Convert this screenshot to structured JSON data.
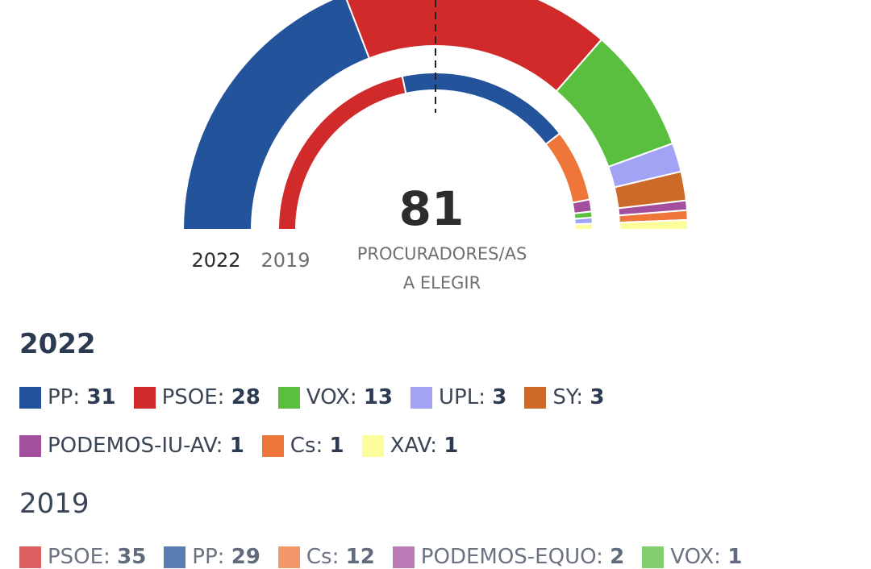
{
  "chart_data": {
    "type": "pie",
    "total": {
      "value": "81",
      "label_line1": "PROCURADORES/AS",
      "label_line2": "A ELEGIR"
    },
    "ring_labels": {
      "outer": "2022",
      "inner": "2019"
    },
    "series": [
      {
        "name": "2022",
        "parties": [
          {
            "party": "PP",
            "seats": 31,
            "color": "#23539a"
          },
          {
            "party": "PSOE",
            "seats": 28,
            "color": "#d12a2a"
          },
          {
            "party": "VOX",
            "seats": 13,
            "color": "#5abf3e"
          },
          {
            "party": "UPL",
            "seats": 3,
            "color": "#a3a3f5"
          },
          {
            "party": "SY",
            "seats": 3,
            "color": "#cc6a29"
          },
          {
            "party": "PODEMOS-IU-AV",
            "seats": 1,
            "color": "#a44f9e"
          },
          {
            "party": "Cs",
            "seats": 1,
            "color": "#ee7639"
          },
          {
            "party": "XAV",
            "seats": 1,
            "color": "#fdfd9c"
          }
        ]
      },
      {
        "name": "2019",
        "parties": [
          {
            "party": "PSOE",
            "seats": 35,
            "color": "#d12a2a"
          },
          {
            "party": "PP",
            "seats": 29,
            "color": "#23539a"
          },
          {
            "party": "Cs",
            "seats": 12,
            "color": "#ee7639"
          },
          {
            "party": "PODEMOS-EQUO",
            "seats": 2,
            "color": "#a44f9e"
          },
          {
            "party": "VOX",
            "seats": 1,
            "color": "#5abf3e"
          },
          {
            "party": "UPL",
            "seats": 1,
            "color": "#a3a3f5"
          },
          {
            "party": "XAV",
            "seats": 1,
            "color": "#fdfd9c"
          }
        ]
      }
    ]
  },
  "legend_2022": {
    "title": "2022",
    "items": [
      {
        "label": "PP:",
        "value": "31",
        "color": "#23539a"
      },
      {
        "label": "PSOE:",
        "value": "28",
        "color": "#d12a2a"
      },
      {
        "label": "VOX:",
        "value": "13",
        "color": "#5abf3e"
      },
      {
        "label": "UPL:",
        "value": "3",
        "color": "#a3a3f5"
      },
      {
        "label": "SY:",
        "value": "3",
        "color": "#cc6a29"
      },
      {
        "label": "PODEMOS-IU-AV:",
        "value": "1",
        "color": "#a44f9e"
      },
      {
        "label": "Cs:",
        "value": "1",
        "color": "#ee7639"
      },
      {
        "label": "XAV:",
        "value": "1",
        "color": "#fdfd9c"
      }
    ]
  },
  "legend_2019": {
    "title": "2019",
    "items": [
      {
        "label": "PSOE:",
        "value": "35",
        "color": "#d12a2a"
      },
      {
        "label": "PP:",
        "value": "29",
        "color": "#23539a"
      },
      {
        "label": "Cs:",
        "value": "12",
        "color": "#ee7639"
      },
      {
        "label": "PODEMOS-EQUO:",
        "value": "2",
        "color": "#a44f9e"
      },
      {
        "label": "VOX:",
        "value": "1",
        "color": "#5abf3e"
      }
    ]
  }
}
